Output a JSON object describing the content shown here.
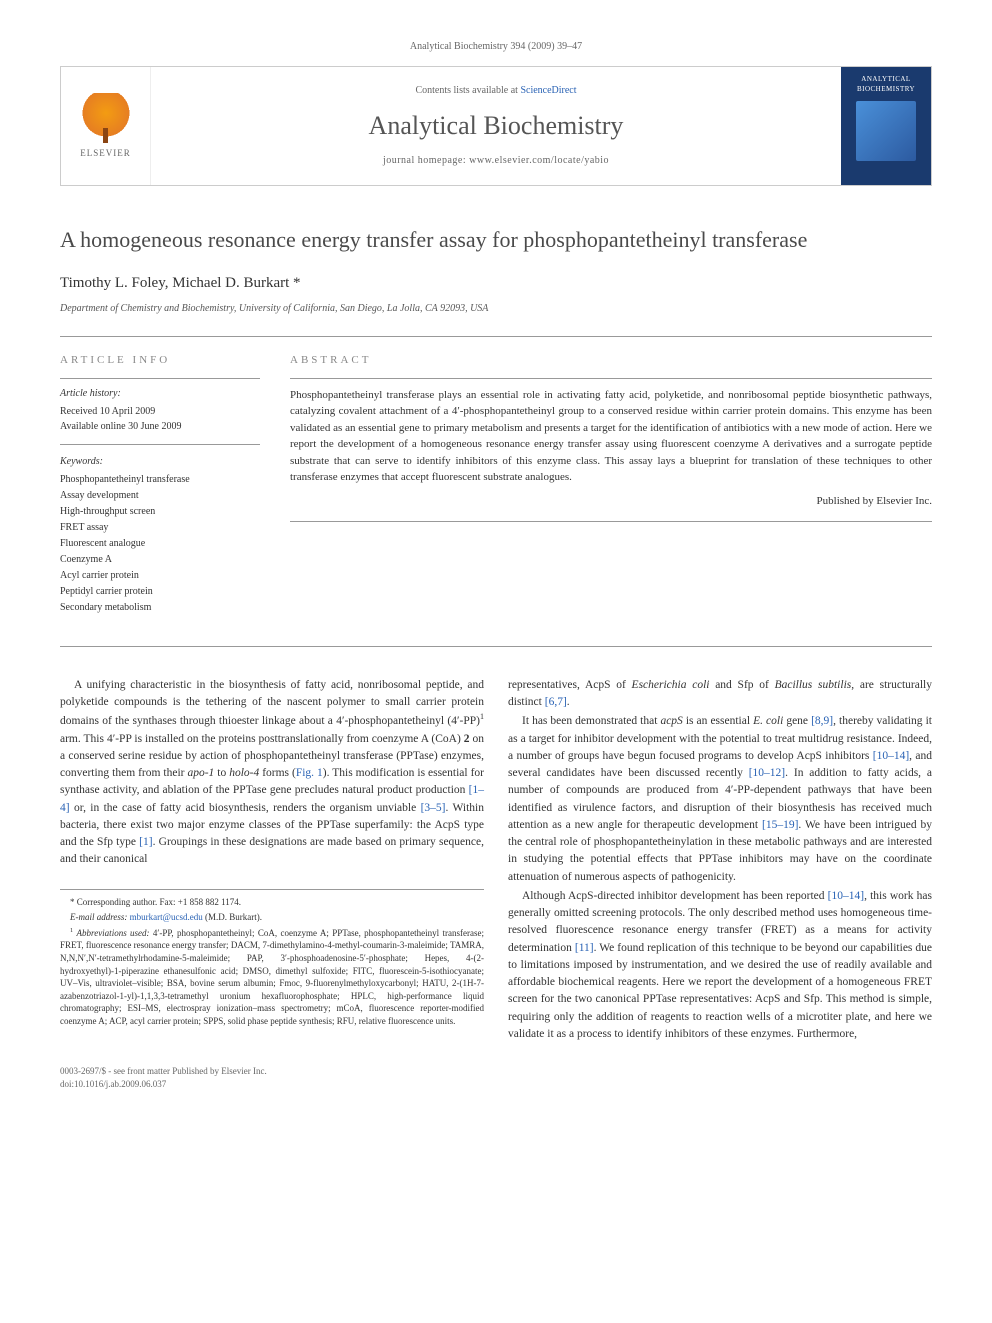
{
  "journal_ref": "Analytical Biochemistry 394 (2009) 39–47",
  "header": {
    "contents_prefix": "Contents lists available at ",
    "contents_link": "ScienceDirect",
    "journal_name": "Analytical Biochemistry",
    "homepage_prefix": "journal homepage: ",
    "homepage_url": "www.elsevier.com/locate/yabio",
    "elsevier_label": "ELSEVIER",
    "cover_title": "ANALYTICAL BIOCHEMISTRY"
  },
  "article": {
    "title": "A homogeneous resonance energy transfer assay for phosphopantetheinyl transferase",
    "authors": "Timothy L. Foley, Michael D. Burkart *",
    "affiliation": "Department of Chemistry and Biochemistry, University of California, San Diego, La Jolla, CA 92093, USA"
  },
  "info": {
    "heading": "ARTICLE INFO",
    "history_title": "Article history:",
    "received": "Received 10 April 2009",
    "online": "Available online 30 June 2009",
    "keywords_title": "Keywords:",
    "keywords": [
      "Phosphopantetheinyl transferase",
      "Assay development",
      "High-throughput screen",
      "FRET assay",
      "Fluorescent analogue",
      "Coenzyme A",
      "Acyl carrier protein",
      "Peptidyl carrier protein",
      "Secondary metabolism"
    ]
  },
  "abstract": {
    "heading": "ABSTRACT",
    "text": "Phosphopantetheinyl transferase plays an essential role in activating fatty acid, polyketide, and nonribosomal peptide biosynthetic pathways, catalyzing covalent attachment of a 4′-phosphopantetheinyl group to a conserved residue within carrier protein domains. This enzyme has been validated as an essential gene to primary metabolism and presents a target for the identification of antibiotics with a new mode of action. Here we report the development of a homogeneous resonance energy transfer assay using fluorescent coenzyme A derivatives and a surrogate peptide substrate that can serve to identify inhibitors of this enzyme class. This assay lays a blueprint for translation of these techniques to other transferase enzymes that accept fluorescent substrate analogues.",
    "publisher": "Published by Elsevier Inc."
  },
  "body": {
    "col1_p1_a": "A unifying characteristic in the biosynthesis of fatty acid, nonribosomal peptide, and polyketide compounds is the tethering of the nascent polymer to small carrier protein domains of the synthases through thioester linkage about a 4′-phosphopantetheinyl (4′-PP)",
    "col1_p1_b": " arm. This 4′-PP is installed on the proteins posttranslationally from coenzyme A (CoA) ",
    "col1_p1_c": " on a conserved serine residue by action of phosphopantetheinyl transferase (PPTase) enzymes, converting them from their ",
    "col1_p1_d": " forms (",
    "col1_p1_e": "). This modification is essential for synthase activity, and ablation of the PPTase gene precludes natural product production ",
    "col1_p1_f": " or, in the case of fatty acid biosynthesis, renders the organism unviable ",
    "col1_p1_g": ". Within bacteria, there exist two major enzyme classes of the PPTase superfamily: the AcpS type and the Sfp type ",
    "col1_p1_h": ". Groupings in these designations are made based on primary sequence, and their canonical",
    "col2_p1": "representatives, AcpS of Escherichia coli and Sfp of Bacillus subtilis, are structurally distinct [6,7].",
    "col2_p2_a": "It has been demonstrated that ",
    "col2_p2_b": " is an essential ",
    "col2_p2_c": " gene ",
    "col2_p2_d": ", thereby validating it as a target for inhibitor development with the potential to treat multidrug resistance. Indeed, a number of groups have begun focused programs to develop AcpS inhibitors ",
    "col2_p2_e": ", and several candidates have been discussed recently ",
    "col2_p2_f": ". In addition to fatty acids, a number of compounds are produced from 4′-PP-dependent pathways that have been identified as virulence factors, and disruption of their biosynthesis has received much attention as a new angle for therapeutic development ",
    "col2_p2_g": ". We have been intrigued by the central role of phosphopantetheinylation in these metabolic pathways and are interested in studying the potential effects that PPTase inhibitors may have on the coordinate attenuation of numerous aspects of pathogenicity.",
    "col2_p3_a": "Although AcpS-directed inhibitor development has been reported ",
    "col2_p3_b": ", this work has generally omitted screening protocols. The only described method uses homogeneous time-resolved fluorescence resonance energy transfer (FRET) as a means for activity determination ",
    "col2_p3_c": ". We found replication of this technique to be beyond our capabilities due to limitations imposed by instrumentation, and we desired the use of readily available and affordable biochemical reagents. Here we report the development of a homogeneous FRET screen for the two canonical PPTase representatives: AcpS and Sfp. This method is simple, requiring only the addition of reagents to reaction wells of a microtiter plate, and here we validate it as a process to identify inhibitors of these enzymes. Furthermore,",
    "refs": {
      "fig1": "Fig. 1",
      "r1_4": "[1–4]",
      "r3_5": "[3–5]",
      "r1": "[1]",
      "r6_7": "[6,7]",
      "r8_9": "[8,9]",
      "r10_14": "[10–14]",
      "r10_12": "[10–12]",
      "r15_19": "[15–19]",
      "r11": "[11]"
    },
    "italic": {
      "apo1": "apo-1",
      "holo4": "holo-4",
      "ecoli": "Escherichia coli",
      "bsubtilis": "Bacillus subtilis",
      "acps": "acpS",
      "ecoli2": "E. coli"
    },
    "two": "2",
    "to": " to ",
    "sup1": "1"
  },
  "footnotes": {
    "corr": "* Corresponding author. Fax: +1 858 882 1174.",
    "email_label": "E-mail address: ",
    "email": "mburkart@ucsd.edu",
    "email_suffix": " (M.D. Burkart).",
    "abbrev_label": "Abbreviations used:",
    "abbrev_text": " 4′-PP, phosphopantetheinyl; CoA, coenzyme A; PPTase, phosphopantetheinyl transferase; FRET, fluorescence resonance energy transfer; DACM, 7-dimethylamino-4-methyl-coumarin-3-maleimide; TAMRA, N,N,N′,N′-tetramethylrhodamine-5-maleimide; PAP, 3′-phosphoadenosine-5′-phosphate; Hepes, 4-(2-hydroxyethyl)-1-piperazine ethanesulfonic acid; DMSO, dimethyl sulfoxide; FITC, fluorescein-5-isothiocyanate; UV–Vis, ultraviolet–visible; BSA, bovine serum albumin; Fmoc, 9-fluorenylmethyloxycarbonyl; HATU, 2-(1H-7-azabenzotriazol-1-yl)-1,1,3,3-tetramethyl uronium hexafluorophosphate; HPLC, high-performance liquid chromatography; ESI–MS, electrospray ionization–mass spectrometry; mCoA, fluorescence reporter-modified coenzyme A; ACP, acyl carrier protein; SPPS, solid phase peptide synthesis; RFU, relative fluorescence units.",
    "sup1": "1"
  },
  "footer": {
    "issn": "0003-2697/$ - see front matter Published by Elsevier Inc.",
    "doi": "doi:10.1016/j.ab.2009.06.037"
  },
  "colors": {
    "link": "#2962b4",
    "text": "#333333",
    "muted": "#666666",
    "border": "#cccccc",
    "cover_bg": "#1a3a6e"
  }
}
